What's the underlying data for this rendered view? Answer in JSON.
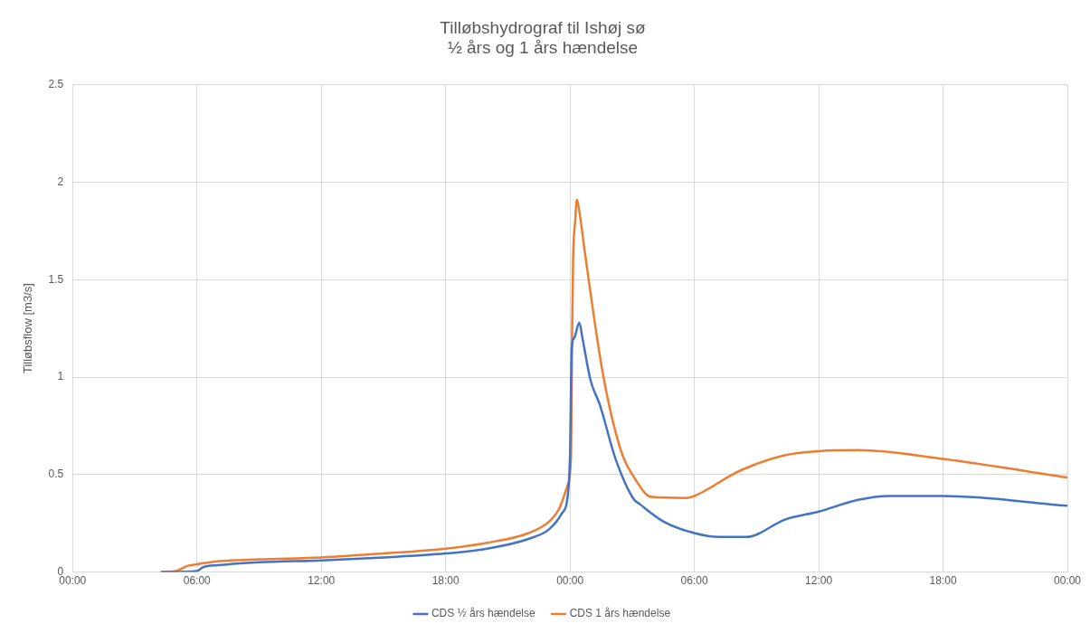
{
  "chart_data": {
    "type": "line",
    "title": "Tilløbshydrograf til Ishøj sø",
    "subtitle": "½ års og 1 års hændelse",
    "ylabel": "Tilløbsflow [m3/s]",
    "xlim": [
      "--01-01T00:00",
      "--01-03T00:00"
    ],
    "xticks": [
      {
        "value": "--01-01T00:00",
        "label": "00:00"
      },
      {
        "value": "--01-01T06:00",
        "label": "06:00"
      },
      {
        "value": "--01-01T12:00",
        "label": "12:00"
      },
      {
        "value": "--01-01T18:00",
        "label": "18:00"
      },
      {
        "value": "--01-02T00:00",
        "label": "00:00"
      },
      {
        "value": "--01-02T06:00",
        "label": "06:00"
      },
      {
        "value": "--01-02T12:00",
        "label": "12:00"
      },
      {
        "value": "--01-02T18:00",
        "label": "18:00"
      },
      {
        "value": "--01-03T00:00",
        "label": "00:00"
      }
    ],
    "ylim": [
      0,
      2.5
    ],
    "yticks": [
      0,
      0.5,
      1,
      1.5,
      2,
      2.5
    ],
    "grid": true,
    "legend": "bottom",
    "marker": "none",
    "line_style": "solid",
    "series": [
      {
        "name": "CDS ½ års hændelse",
        "color": "#4472c4",
        "x": [
          "--01-01T04:18",
          "--01-01T06:00",
          "--01-01T06:18",
          "--01-01T07:00",
          "--01-01T09:00",
          "--01-01T12:00",
          "--01-01T15:00",
          "--01-01T18:00",
          "--01-01T20:00",
          "--01-01T22:00",
          "--01-01T23:00",
          "--01-01T23:36",
          "--01-01T23:54",
          "--01-02T00:00",
          "--01-02T00:05",
          "--01-02T00:12",
          "--01-02T00:27",
          "--01-02T00:36",
          "--01-02T01:00",
          "--01-02T01:26",
          "--01-02T02:12",
          "--01-02T03:04",
          "--01-02T03:21",
          "--01-02T04:30",
          "--01-02T06:00",
          "--01-02T07:12",
          "--01-02T08:30",
          "--01-02T10:24",
          "--01-02T12:00",
          "--01-02T13:54",
          "--01-02T15:24",
          "--01-02T18:00",
          "--01-03T00:00"
        ],
        "values": [
          0,
          0.005,
          0.025,
          0.035,
          0.05,
          0.06,
          0.075,
          0.095,
          0.12,
          0.17,
          0.22,
          0.3,
          0.4,
          0.6,
          1.15,
          1.2,
          1.28,
          1.2,
          0.98,
          0.86,
          0.58,
          0.375,
          0.35,
          0.26,
          0.2,
          0.18,
          0.18,
          0.27,
          0.31,
          0.37,
          0.39,
          0.39,
          0.34
        ]
      },
      {
        "name": "CDS 1 års hændelse",
        "color": "#ed7d31",
        "x": [
          "--01-01T04:18",
          "--01-01T05:00",
          "--01-01T05:30",
          "--01-01T06:00",
          "--01-01T07:00",
          "--01-01T09:00",
          "--01-01T12:00",
          "--01-01T15:00",
          "--01-01T18:00",
          "--01-01T20:00",
          "--01-01T22:00",
          "--01-01T23:00",
          "--01-01T23:30",
          "--01-01T23:54",
          "--01-02T00:03",
          "--01-02T00:06",
          "--01-02T00:09",
          "--01-02T00:15",
          "--01-02T00:20",
          "--01-02T00:27",
          "--01-02T00:43",
          "--01-02T01:35",
          "--01-02T02:28",
          "--01-02T03:04",
          "--01-02T03:56",
          "--01-02T05:36",
          "--01-02T06:00",
          "--01-02T08:12",
          "--01-02T10:24",
          "--01-02T12:00",
          "--01-02T13:54",
          "--01-02T18:00",
          "--01-03T00:00"
        ],
        "values": [
          0,
          0.005,
          0.03,
          0.04,
          0.055,
          0.065,
          0.075,
          0.095,
          0.12,
          0.15,
          0.2,
          0.26,
          0.33,
          0.45,
          0.6,
          1.2,
          1.6,
          1.8,
          1.91,
          1.85,
          1.64,
          1.02,
          0.62,
          0.49,
          0.385,
          0.38,
          0.39,
          0.52,
          0.6,
          0.62,
          0.625,
          0.58,
          0.485
        ]
      }
    ]
  }
}
